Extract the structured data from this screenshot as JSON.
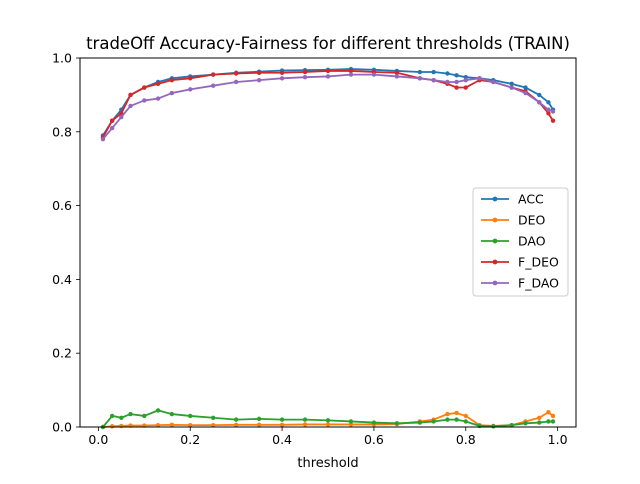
{
  "chart_data": {
    "type": "line",
    "title": "tradeOff Accuracy-Fairness for different thresholds (TRAIN)",
    "xlabel": "threshold",
    "ylabel": "",
    "xlim": [
      -0.04,
      1.04
    ],
    "ylim": [
      0.0,
      1.0
    ],
    "xticks": [
      0.0,
      0.2,
      0.4,
      0.6,
      0.8,
      1.0
    ],
    "xtick_labels": [
      "0.0",
      "0.2",
      "0.4",
      "0.6",
      "0.8",
      "1.0"
    ],
    "yticks": [
      0.0,
      0.2,
      0.4,
      0.6,
      0.8,
      1.0
    ],
    "ytick_labels": [
      "0.0",
      "0.2",
      "0.4",
      "0.6",
      "0.8",
      "1.0"
    ],
    "grid": false,
    "legend_position": "center-right",
    "x": [
      0.01,
      0.03,
      0.05,
      0.07,
      0.1,
      0.13,
      0.16,
      0.2,
      0.25,
      0.3,
      0.35,
      0.4,
      0.45,
      0.5,
      0.55,
      0.6,
      0.65,
      0.7,
      0.73,
      0.76,
      0.78,
      0.8,
      0.83,
      0.86,
      0.9,
      0.93,
      0.96,
      0.98,
      0.99
    ],
    "series": [
      {
        "name": "ACC",
        "color": "#1f77b4",
        "values": [
          0.79,
          0.83,
          0.86,
          0.9,
          0.92,
          0.935,
          0.945,
          0.95,
          0.955,
          0.96,
          0.963,
          0.966,
          0.967,
          0.968,
          0.97,
          0.968,
          0.965,
          0.962,
          0.962,
          0.958,
          0.953,
          0.948,
          0.945,
          0.94,
          0.93,
          0.92,
          0.9,
          0.88,
          0.86
        ]
      },
      {
        "name": "DEO",
        "color": "#ff7f0e",
        "values": [
          0.0,
          0.002,
          0.003,
          0.004,
          0.004,
          0.005,
          0.006,
          0.005,
          0.005,
          0.006,
          0.006,
          0.006,
          0.007,
          0.007,
          0.007,
          0.007,
          0.008,
          0.015,
          0.02,
          0.035,
          0.038,
          0.03,
          0.005,
          0.003,
          0.005,
          0.015,
          0.025,
          0.04,
          0.03
        ]
      },
      {
        "name": "DAO",
        "color": "#2ca02c",
        "values": [
          0.0,
          0.03,
          0.025,
          0.035,
          0.03,
          0.045,
          0.035,
          0.03,
          0.025,
          0.02,
          0.022,
          0.02,
          0.02,
          0.018,
          0.015,
          0.012,
          0.01,
          0.012,
          0.015,
          0.02,
          0.02,
          0.015,
          0.003,
          0.002,
          0.005,
          0.01,
          0.012,
          0.015,
          0.015
        ]
      },
      {
        "name": "F_DEO",
        "color": "#d62728",
        "values": [
          0.785,
          0.83,
          0.85,
          0.9,
          0.92,
          0.93,
          0.94,
          0.945,
          0.955,
          0.958,
          0.96,
          0.96,
          0.962,
          0.965,
          0.965,
          0.962,
          0.96,
          0.945,
          0.94,
          0.93,
          0.92,
          0.92,
          0.94,
          0.935,
          0.92,
          0.91,
          0.88,
          0.85,
          0.83
        ]
      },
      {
        "name": "F_DAO",
        "color": "#9467bd",
        "values": [
          0.78,
          0.81,
          0.84,
          0.87,
          0.885,
          0.89,
          0.905,
          0.915,
          0.925,
          0.935,
          0.94,
          0.945,
          0.948,
          0.95,
          0.955,
          0.955,
          0.95,
          0.945,
          0.94,
          0.935,
          0.935,
          0.94,
          0.945,
          0.935,
          0.92,
          0.905,
          0.88,
          0.86,
          0.855
        ]
      }
    ]
  }
}
